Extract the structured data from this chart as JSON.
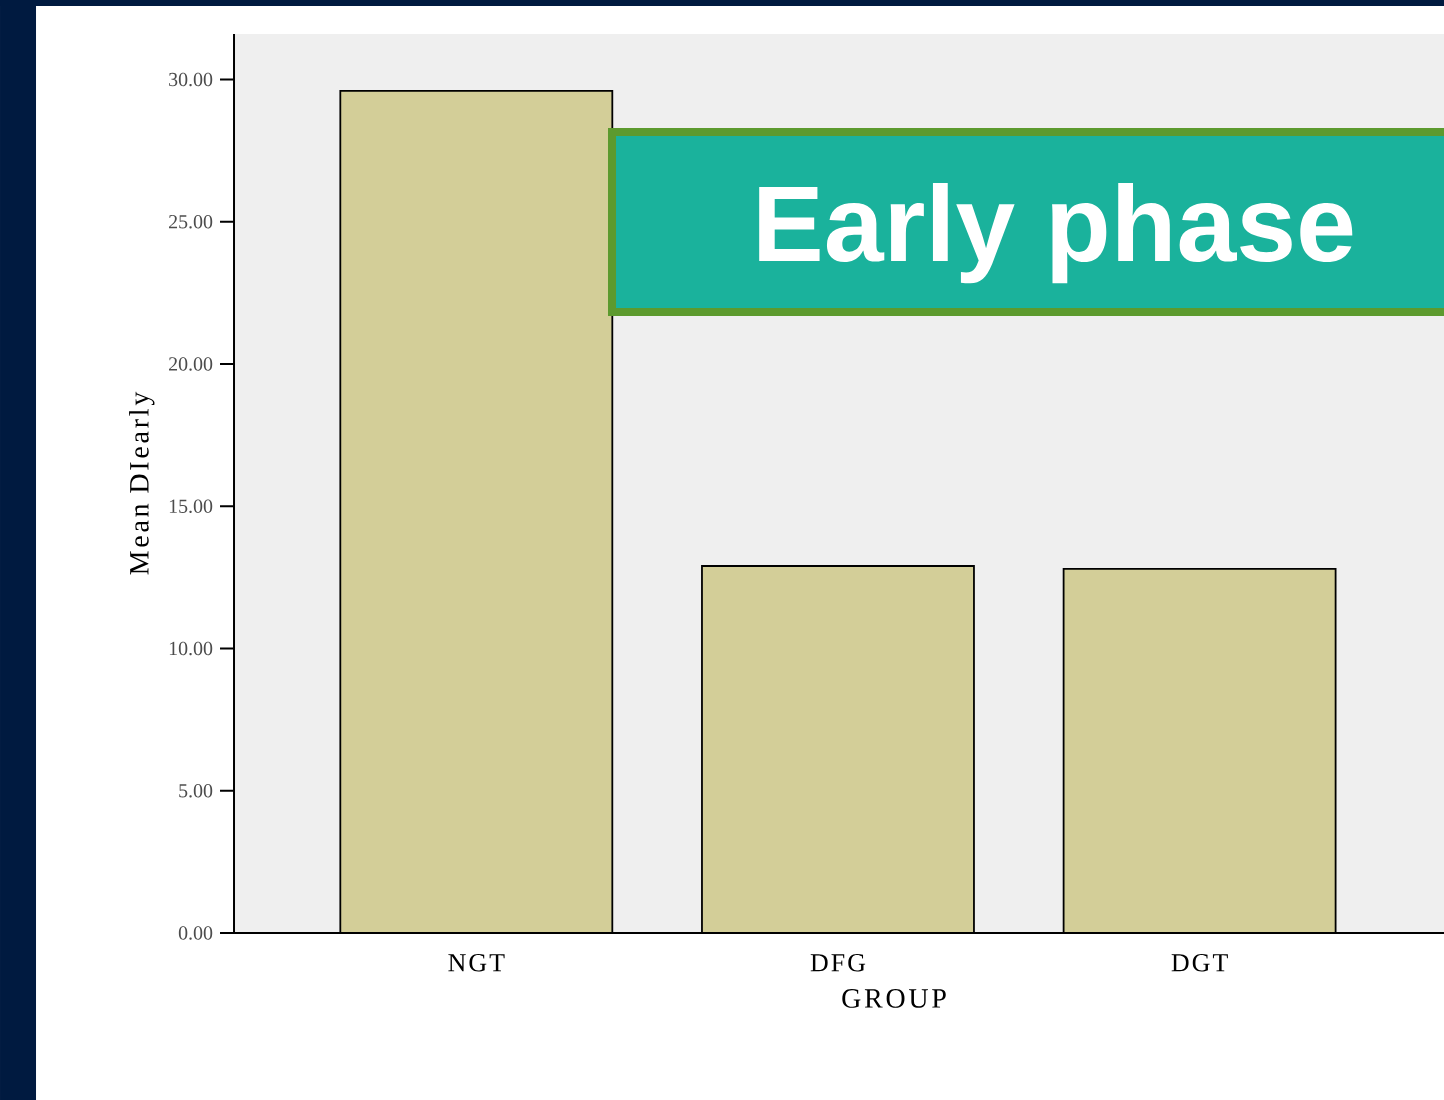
{
  "chart_data": {
    "type": "bar",
    "categories": [
      "NGT",
      "DFG",
      "DGT"
    ],
    "values": [
      29.6,
      12.9,
      12.8
    ],
    "color": "#d3ce98",
    "xlabel": "GROUP",
    "ylabel": "Mean DIearly",
    "ylim": [
      0,
      31.6
    ],
    "yticks": [
      {
        "value": 0,
        "label": "0.00"
      },
      {
        "value": 5,
        "label": "5.00"
      },
      {
        "value": 10,
        "label": "10.00"
      },
      {
        "value": 15,
        "label": "15.00"
      },
      {
        "value": 20,
        "label": "20.00"
      },
      {
        "value": 25,
        "label": "25.00"
      },
      {
        "value": 30,
        "label": "30.00"
      }
    ],
    "annotations": [
      "Early phase"
    ]
  }
}
